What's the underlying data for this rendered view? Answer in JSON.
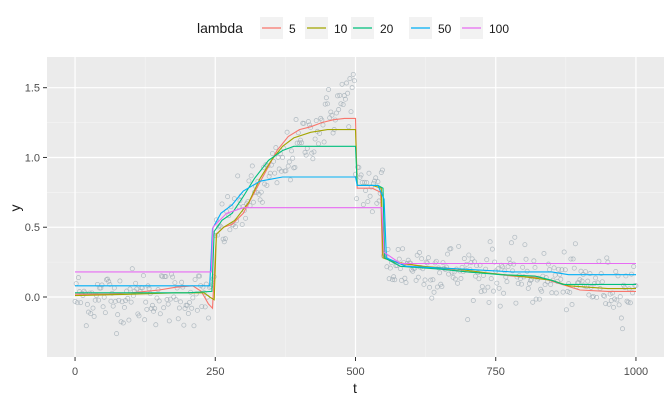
{
  "chart_data": {
    "type": "line",
    "xlabel": "t",
    "ylabel": "y",
    "xlim": [
      -50,
      1050
    ],
    "ylim": [
      -0.43,
      1.72
    ],
    "x_ticks": [
      0,
      250,
      500,
      750,
      1000
    ],
    "x_tick_labels": [
      "0",
      "250",
      "500",
      "750",
      "1000"
    ],
    "y_ticks": [
      0,
      0.5,
      1,
      1.5
    ],
    "y_tick_labels": [
      "0.0",
      "0.5",
      "1.0",
      "1.5"
    ],
    "grid": true,
    "legend_position": "top",
    "legend": {
      "title": "lambda",
      "entries": [
        {
          "label": "5",
          "color": "#F8766D"
        },
        {
          "label": "10",
          "color": "#A3A500"
        },
        {
          "label": "20",
          "color": "#00BF7D"
        },
        {
          "label": "50",
          "color": "#00B0F6"
        },
        {
          "label": "100",
          "color": "#E76BF3"
        }
      ]
    },
    "series": [
      {
        "name": "5",
        "color": "#F8766D",
        "points": [
          [
            0,
            0.02
          ],
          [
            60,
            0.02
          ],
          [
            100,
            0.03
          ],
          [
            150,
            0.05
          ],
          [
            180,
            0.07
          ],
          [
            210,
            0.08
          ],
          [
            225,
            0.04
          ],
          [
            238,
            -0.05
          ],
          [
            245,
            -0.08
          ],
          [
            252,
            0.45
          ],
          [
            265,
            0.5
          ],
          [
            280,
            0.52
          ],
          [
            300,
            0.6
          ],
          [
            320,
            0.75
          ],
          [
            340,
            0.9
          ],
          [
            360,
            1.05
          ],
          [
            380,
            1.15
          ],
          [
            400,
            1.2
          ],
          [
            420,
            1.22
          ],
          [
            440,
            1.25
          ],
          [
            460,
            1.27
          ],
          [
            480,
            1.28
          ],
          [
            500,
            1.28
          ],
          [
            503,
            0.78
          ],
          [
            530,
            0.78
          ],
          [
            545,
            0.75
          ],
          [
            548,
            0.3
          ],
          [
            560,
            0.27
          ],
          [
            580,
            0.24
          ],
          [
            620,
            0.22
          ],
          [
            660,
            0.2
          ],
          [
            700,
            0.18
          ],
          [
            740,
            0.17
          ],
          [
            780,
            0.15
          ],
          [
            830,
            0.14
          ],
          [
            860,
            0.1
          ],
          [
            900,
            0.05
          ],
          [
            950,
            0.04
          ],
          [
            1000,
            0.04
          ]
        ]
      },
      {
        "name": "10",
        "color": "#A3A500",
        "points": [
          [
            0,
            0.01
          ],
          [
            100,
            0.02
          ],
          [
            180,
            0.03
          ],
          [
            230,
            0.03
          ],
          [
            240,
            0.0
          ],
          [
            248,
            -0.02
          ],
          [
            252,
            0.45
          ],
          [
            265,
            0.5
          ],
          [
            285,
            0.55
          ],
          [
            310,
            0.68
          ],
          [
            330,
            0.85
          ],
          [
            350,
            0.98
          ],
          [
            370,
            1.08
          ],
          [
            390,
            1.14
          ],
          [
            420,
            1.18
          ],
          [
            450,
            1.2
          ],
          [
            480,
            1.2
          ],
          [
            500,
            1.2
          ],
          [
            503,
            0.8
          ],
          [
            530,
            0.8
          ],
          [
            546,
            0.78
          ],
          [
            549,
            0.28
          ],
          [
            570,
            0.25
          ],
          [
            620,
            0.22
          ],
          [
            680,
            0.2
          ],
          [
            740,
            0.17
          ],
          [
            790,
            0.15
          ],
          [
            850,
            0.12
          ],
          [
            880,
            0.08
          ],
          [
            950,
            0.06
          ],
          [
            1000,
            0.06
          ]
        ]
      },
      {
        "name": "20",
        "color": "#00BF7D",
        "points": [
          [
            0,
            0.03
          ],
          [
            120,
            0.03
          ],
          [
            200,
            0.03
          ],
          [
            244,
            0.04
          ],
          [
            248,
            0.47
          ],
          [
            262,
            0.55
          ],
          [
            280,
            0.6
          ],
          [
            300,
            0.72
          ],
          [
            320,
            0.85
          ],
          [
            345,
            0.98
          ],
          [
            370,
            1.05
          ],
          [
            390,
            1.08
          ],
          [
            420,
            1.08
          ],
          [
            460,
            1.08
          ],
          [
            500,
            1.08
          ],
          [
            503,
            0.8
          ],
          [
            540,
            0.8
          ],
          [
            549,
            0.78
          ],
          [
            552,
            0.28
          ],
          [
            580,
            0.22
          ],
          [
            650,
            0.2
          ],
          [
            700,
            0.18
          ],
          [
            760,
            0.16
          ],
          [
            820,
            0.15
          ],
          [
            850,
            0.12
          ],
          [
            870,
            0.09
          ],
          [
            950,
            0.09
          ],
          [
            1000,
            0.09
          ]
        ]
      },
      {
        "name": "50",
        "color": "#00B0F6",
        "points": [
          [
            0,
            0.08
          ],
          [
            240,
            0.08
          ],
          [
            245,
            0.49
          ],
          [
            260,
            0.6
          ],
          [
            280,
            0.66
          ],
          [
            300,
            0.76
          ],
          [
            330,
            0.83
          ],
          [
            370,
            0.86
          ],
          [
            420,
            0.86
          ],
          [
            500,
            0.86
          ],
          [
            503,
            0.8
          ],
          [
            540,
            0.8
          ],
          [
            551,
            0.7
          ],
          [
            555,
            0.28
          ],
          [
            590,
            0.22
          ],
          [
            690,
            0.2
          ],
          [
            780,
            0.18
          ],
          [
            850,
            0.18
          ],
          [
            880,
            0.16
          ],
          [
            1000,
            0.16
          ]
        ]
      },
      {
        "name": "100",
        "color": "#E76BF3",
        "points": [
          [
            0,
            0.18
          ],
          [
            243,
            0.18
          ],
          [
            246,
            0.5
          ],
          [
            270,
            0.6
          ],
          [
            300,
            0.64
          ],
          [
            400,
            0.64
          ],
          [
            547,
            0.64
          ],
          [
            551,
            0.32
          ],
          [
            580,
            0.24
          ],
          [
            1000,
            0.24
          ]
        ]
      }
    ]
  }
}
